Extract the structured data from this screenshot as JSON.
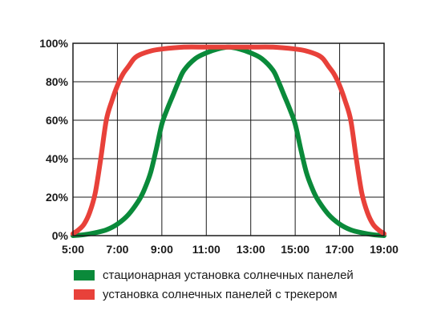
{
  "chart_data": {
    "type": "line",
    "title": "",
    "xlabel": "",
    "ylabel": "",
    "x_ticks": [
      "5:00",
      "7:00",
      "9:00",
      "11:00",
      "13:00",
      "15:00",
      "17:00",
      "19:00"
    ],
    "y_ticks": [
      "0%",
      "20%",
      "40%",
      "60%",
      "80%",
      "100%"
    ],
    "xlim": [
      5,
      19
    ],
    "ylim": [
      0,
      100
    ],
    "grid": true,
    "legend_position": "bottom",
    "series": [
      {
        "name": "стационарная установка солнечных панелей",
        "color": "#0a8a3a",
        "x": [
          5,
          5.5,
          6,
          6.5,
          7,
          7.5,
          8,
          8.25,
          8.5,
          8.75,
          9,
          9.25,
          9.5,
          9.75,
          10,
          10.5,
          11,
          11.5,
          12,
          12.5,
          13,
          13.5,
          14,
          14.25,
          14.5,
          14.75,
          15,
          15.25,
          15.5,
          15.75,
          16,
          16.5,
          17,
          17.5,
          18,
          18.5,
          19
        ],
        "y": [
          0,
          0.5,
          1.5,
          3,
          6,
          11,
          19,
          25,
          33,
          45,
          58,
          66,
          73,
          80,
          86,
          92,
          95,
          97,
          98,
          97,
          95,
          92,
          86,
          80,
          73,
          66,
          58,
          45,
          33,
          25,
          19,
          11,
          6,
          3,
          1.5,
          0.5,
          0
        ]
      },
      {
        "name": "установка солнечных панелей с трекером",
        "color": "#e8413a",
        "x": [
          5,
          5.25,
          5.5,
          5.75,
          6,
          6.25,
          6.5,
          6.75,
          7,
          7.25,
          7.5,
          7.75,
          8,
          8.5,
          9,
          10,
          11,
          12,
          13,
          14,
          15,
          15.5,
          16,
          16.25,
          16.5,
          16.75,
          17,
          17.25,
          17.5,
          17.75,
          18,
          18.25,
          18.5,
          18.75,
          19
        ],
        "y": [
          1,
          3,
          6,
          12,
          22,
          40,
          60,
          70,
          78,
          84,
          88,
          92,
          94,
          96,
          97,
          98,
          98,
          98,
          98,
          98,
          97,
          96,
          94,
          92,
          88,
          84,
          78,
          70,
          60,
          40,
          22,
          12,
          6,
          3,
          1
        ]
      }
    ]
  }
}
